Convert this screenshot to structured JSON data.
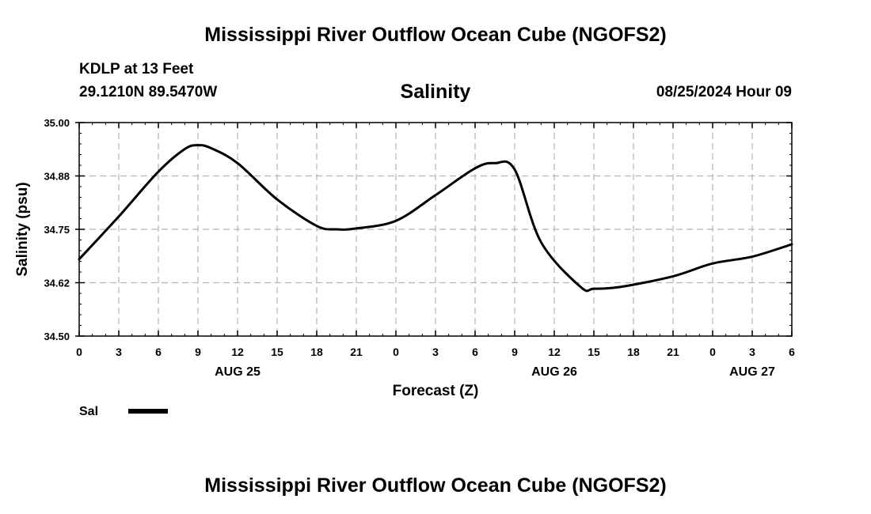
{
  "header": {
    "title": "Mississippi River Outflow Ocean Cube (NGOFS2)",
    "station": "KDLP at 13 Feet",
    "location": "29.1210N  89.5470W",
    "variable": "Salinity",
    "timestamp": "08/25/2024 Hour 09"
  },
  "footer": {
    "title": "Mississippi River Outflow Ocean Cube (NGOFS2)"
  },
  "colors": {
    "line": "#000000",
    "grid": "#b4b4b4"
  },
  "chart_data": {
    "type": "line",
    "xlabel": "Forecast (Z)",
    "ylabel": "Salinity (psu)",
    "xlim": [
      0,
      54
    ],
    "ylim": [
      34.5,
      35.0
    ],
    "x_ticks": [
      0,
      3,
      6,
      9,
      12,
      15,
      18,
      21,
      24,
      27,
      30,
      33,
      36,
      39,
      42,
      45,
      48,
      51,
      54
    ],
    "x_tick_labels": [
      "0",
      "3",
      "6",
      "9",
      "12",
      "15",
      "18",
      "21",
      "0",
      "3",
      "6",
      "9",
      "12",
      "15",
      "18",
      "21",
      "0",
      "3",
      "6"
    ],
    "y_ticks": [
      34.5,
      34.625,
      34.75,
      34.875,
      35.0
    ],
    "y_tick_labels": [
      "34.50",
      "34.62",
      "34.75",
      "34.88",
      "35.00"
    ],
    "date_labels": [
      {
        "x": 12,
        "label": "AUG 25"
      },
      {
        "x": 36,
        "label": "AUG 26"
      },
      {
        "x": 51,
        "label": "AUG 27"
      }
    ],
    "grid": true,
    "legend": {
      "position": "bottom-left",
      "entries": [
        "Sal"
      ]
    },
    "series": [
      {
        "name": "Sal",
        "x": [
          0,
          3,
          6,
          8,
          9,
          10,
          12,
          15,
          18,
          19.5,
          21,
          24,
          27,
          30,
          31.5,
          33,
          35,
          38,
          39,
          41,
          45,
          48,
          51,
          54
        ],
        "y": [
          34.68,
          34.78,
          34.885,
          34.938,
          34.947,
          34.94,
          34.905,
          34.82,
          34.758,
          34.75,
          34.752,
          34.77,
          34.83,
          34.893,
          34.905,
          34.89,
          34.72,
          34.615,
          34.611,
          34.615,
          34.64,
          34.67,
          34.686,
          34.715
        ]
      }
    ]
  }
}
